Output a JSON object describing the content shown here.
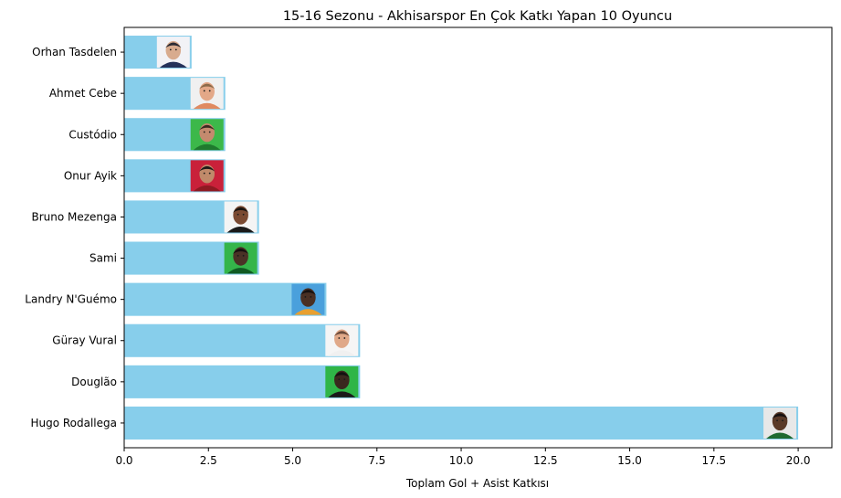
{
  "chart_data": {
    "type": "bar",
    "orientation": "horizontal",
    "title": "15-16 Sezonu - Akhisarspor En Çok Katkı Yapan 10 Oyuncu",
    "xlabel": "Toplam Gol + Asist Katkısı",
    "ylabel": "",
    "xlim": [
      0,
      21
    ],
    "xticks": [
      0.0,
      2.5,
      5.0,
      7.5,
      10.0,
      12.5,
      15.0,
      17.5,
      20.0
    ],
    "xtick_labels": [
      "0.0",
      "2.5",
      "5.0",
      "7.5",
      "10.0",
      "12.5",
      "15.0",
      "17.5",
      "20.0"
    ],
    "grid": false,
    "bar_color": "#87CEEB",
    "categories": [
      "Orhan Tasdelen",
      "Ahmet Cebe",
      "Custódio",
      "Onur Ayik",
      "Bruno Mezenga",
      "Sami",
      "Landry N'Guémo",
      "Güray Vural",
      "Douglão",
      "Hugo Rodallega"
    ],
    "values": [
      2,
      3,
      3,
      3,
      4,
      4,
      6,
      7,
      7,
      20
    ],
    "player_photos": [
      {
        "player": "Orhan Tasdelen",
        "bg": "#f2f2f6",
        "skin": "#d8ab8e",
        "hair": "#2a2a33",
        "shirt": "#25315a"
      },
      {
        "player": "Ahmet Cebe",
        "bg": "#f0f0f0",
        "skin": "#e3a888",
        "hair": "#8b6a4a",
        "shirt": "#e08a60"
      },
      {
        "player": "Custódio",
        "bg": "#3cb84a",
        "skin": "#c48a6e",
        "hair": "#3a2a20",
        "shirt": "#1f7a2e"
      },
      {
        "player": "Onur Ayik",
        "bg": "#c9213a",
        "skin": "#c08a6a",
        "hair": "#1e1a18",
        "shirt": "#8e1a22"
      },
      {
        "player": "Bruno Mezenga",
        "bg": "#f4f4f4",
        "skin": "#7a4a32",
        "hair": "#1a1410",
        "shirt": "#1a1a1a"
      },
      {
        "player": "Sami",
        "bg": "#34b54a",
        "skin": "#4a3226",
        "hair": "#151010",
        "shirt": "#0f5a22"
      },
      {
        "player": "Landry N'Guémo",
        "bg": "#4aa0dc",
        "skin": "#4a3024",
        "hair": "#141010",
        "shirt": "#e8a030"
      },
      {
        "player": "Güray Vural",
        "bg": "#f5f5f5",
        "skin": "#e0a888",
        "hair": "#6a4a3a",
        "shirt": "#f0f0f0"
      },
      {
        "player": "Douglão",
        "bg": "#2fb547",
        "skin": "#3a281e",
        "hair": "#121010",
        "shirt": "#1a1a1a"
      },
      {
        "player": "Hugo Rodallega",
        "bg": "#e8e8e8",
        "skin": "#5a3a28",
        "hair": "#151010",
        "shirt": "#1e6a30"
      }
    ]
  }
}
